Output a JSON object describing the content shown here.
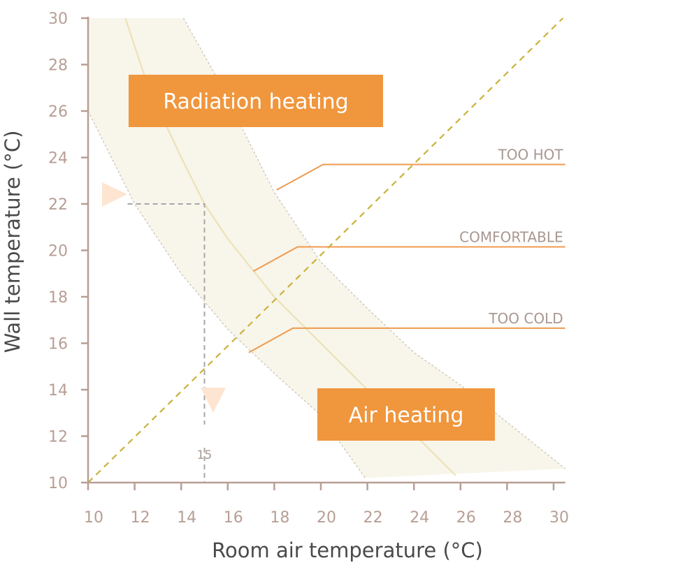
{
  "chart_data": {
    "type": "line",
    "xlabel": "Room air temperature (°C)",
    "ylabel": "Wall temperature (°C)",
    "xlim": [
      10,
      30.5
    ],
    "ylim": [
      10,
      30
    ],
    "x_ticks": [
      10,
      12,
      14,
      16,
      18,
      20,
      22,
      24,
      26,
      28,
      30
    ],
    "y_ticks": [
      10,
      12,
      14,
      16,
      18,
      20,
      22,
      24,
      26,
      28,
      30
    ],
    "grid": false,
    "series": [
      {
        "role": "comfort-center",
        "color": "#ece2b8",
        "points": [
          [
            11.6,
            30
          ],
          [
            12.6,
            27
          ],
          [
            14,
            24
          ],
          [
            15,
            22
          ],
          [
            16,
            20.5
          ],
          [
            18,
            18
          ],
          [
            20,
            16
          ],
          [
            22,
            14
          ],
          [
            24,
            12.1
          ],
          [
            25.8,
            10.3
          ]
        ]
      },
      {
        "role": "comfort-upper-bound",
        "color": "#c8c0b4",
        "points": [
          [
            14.1,
            30
          ],
          [
            15.5,
            27.5
          ],
          [
            18,
            22.5
          ],
          [
            20,
            19.5
          ],
          [
            22,
            17.5
          ],
          [
            24,
            15.6
          ],
          [
            26,
            14.2
          ],
          [
            28,
            12.6
          ],
          [
            30.5,
            10.6
          ]
        ]
      },
      {
        "role": "comfort-lower-bound",
        "color": "#c8c0b4",
        "points": [
          [
            10,
            26
          ],
          [
            12,
            22
          ],
          [
            14,
            19
          ],
          [
            16,
            16.6
          ],
          [
            18,
            14.7
          ],
          [
            20,
            12.9
          ],
          [
            21.9,
            10.2
          ]
        ]
      },
      {
        "role": "equal-temperature-line",
        "color": "#c9b23a",
        "points": [
          [
            10,
            10
          ],
          [
            30.4,
            30
          ]
        ]
      }
    ],
    "band_color": "#f8f5ea",
    "zones": [
      {
        "label": "TOO HOT",
        "leader": [
          [
            18.1,
            22.6
          ],
          [
            20.1,
            23.7
          ],
          [
            30.5,
            23.7
          ]
        ]
      },
      {
        "label": "COMFORTABLE",
        "leader": [
          [
            17.1,
            19.1
          ],
          [
            19,
            20.15
          ],
          [
            30.5,
            20.15
          ]
        ]
      },
      {
        "label": "TOO COLD",
        "leader": [
          [
            16.9,
            15.6
          ],
          [
            18.8,
            16.65
          ],
          [
            30.5,
            16.65
          ]
        ]
      }
    ],
    "regions": [
      {
        "label": "Radiation heating",
        "color": "#f0963d"
      },
      {
        "label": "Air heating",
        "color": "#f0963d"
      }
    ],
    "reference": {
      "x": 15,
      "y": 22,
      "x_label": "15"
    },
    "leader_color": "#ee9a4e",
    "marker_color": "#fde5d2",
    "axis_color": "#b89e94"
  }
}
